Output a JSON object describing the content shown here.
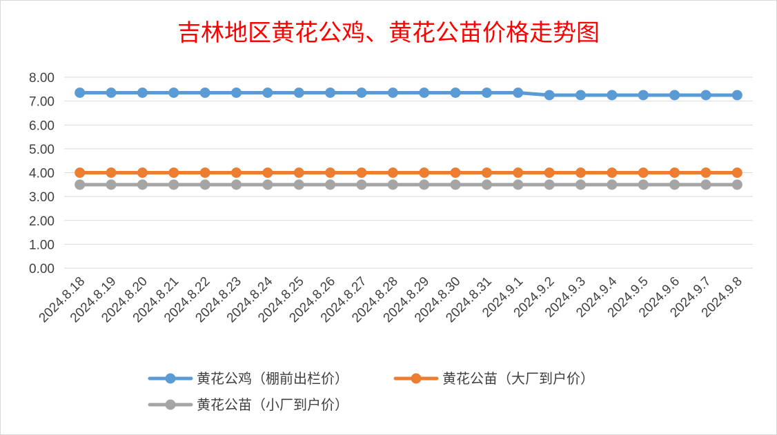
{
  "chart_data": {
    "type": "line",
    "title": "吉林地区黄花公鸡、黄花公苗价格走势图",
    "xlabel": "",
    "ylabel": "",
    "categories": [
      "2024.8.18",
      "2024.8.19",
      "2024.8.20",
      "2024.8.21",
      "2024.8.22",
      "2024.8.23",
      "2024.8.24",
      "2024.8.25",
      "2024.8.26",
      "2024.8.27",
      "2024.8.28",
      "2024.8.29",
      "2024.8.30",
      "2024.8.31",
      "2024.9.1",
      "2024.9.2",
      "2024.9.3",
      "2024.9.4",
      "2024.9.5",
      "2024.9.6",
      "2024.9.7",
      "2024.9.8"
    ],
    "ylim": [
      0,
      8
    ],
    "yticks": [
      "0.00",
      "1.00",
      "2.00",
      "3.00",
      "4.00",
      "5.00",
      "6.00",
      "7.00",
      "8.00"
    ],
    "grid": true,
    "legend_position": "bottom",
    "series": [
      {
        "name": "黄花公鸡（棚前出栏价）",
        "color": "#5b9bd5",
        "values": [
          7.35,
          7.35,
          7.35,
          7.35,
          7.35,
          7.35,
          7.35,
          7.35,
          7.35,
          7.35,
          7.35,
          7.35,
          7.35,
          7.35,
          7.35,
          7.25,
          7.25,
          7.25,
          7.25,
          7.25,
          7.25,
          7.25
        ]
      },
      {
        "name": "黄花公苗（大厂到户价）",
        "color": "#ed7d31",
        "values": [
          4.0,
          4.0,
          4.0,
          4.0,
          4.0,
          4.0,
          4.0,
          4.0,
          4.0,
          4.0,
          4.0,
          4.0,
          4.0,
          4.0,
          4.0,
          4.0,
          4.0,
          4.0,
          4.0,
          4.0,
          4.0,
          4.0
        ]
      },
      {
        "name": "黄花公苗（小厂到户价）",
        "color": "#a5a5a5",
        "values": [
          3.5,
          3.5,
          3.5,
          3.5,
          3.5,
          3.5,
          3.5,
          3.5,
          3.5,
          3.5,
          3.5,
          3.5,
          3.5,
          3.5,
          3.5,
          3.5,
          3.5,
          3.5,
          3.5,
          3.5,
          3.5,
          3.5
        ]
      }
    ]
  }
}
